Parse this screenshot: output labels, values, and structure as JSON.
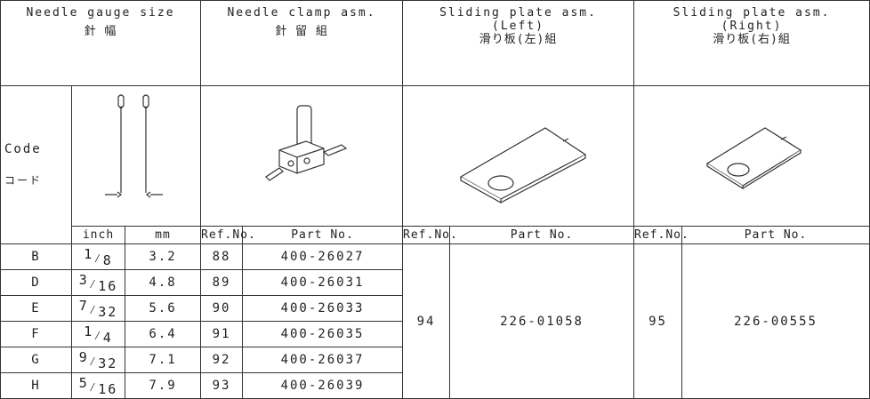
{
  "header": {
    "needle_gauge": {
      "title": "Needle gauge size",
      "subtitle": "針 幅"
    },
    "needle_clamp": {
      "title": "Needle clamp asm.",
      "subtitle": "針 留 組"
    },
    "sliding_left": {
      "title": "Sliding plate asm.",
      "side": "(Left)",
      "subtitle": "滑り板(左)組"
    },
    "sliding_right": {
      "title": "Sliding plate asm.",
      "side": "(Right)",
      "subtitle": "滑り板(右)組"
    }
  },
  "code_label": {
    "en": "Code",
    "ja": "コード"
  },
  "columns": [
    "inch",
    "mm",
    "Ref.No.",
    "Part No.",
    "Ref.No.",
    "Part No.",
    "Ref.No.",
    "Part No."
  ],
  "rows": [
    {
      "code": "B",
      "inch": {
        "num": "1",
        "den": "8"
      },
      "mm": "3.2",
      "ref": "88",
      "part": "400-26027"
    },
    {
      "code": "D",
      "inch": {
        "num": "3",
        "den": "16"
      },
      "mm": "4.8",
      "ref": "89",
      "part": "400-26031"
    },
    {
      "code": "E",
      "inch": {
        "num": "7",
        "den": "32"
      },
      "mm": "5.6",
      "ref": "90",
      "part": "400-26033"
    },
    {
      "code": "F",
      "inch": {
        "num": "1",
        "den": "4"
      },
      "mm": "6.4",
      "ref": "91",
      "part": "400-26035"
    },
    {
      "code": "G",
      "inch": {
        "num": "9",
        "den": "32"
      },
      "mm": "7.1",
      "ref": "92",
      "part": "400-26037"
    },
    {
      "code": "H",
      "inch": {
        "num": "5",
        "den": "16"
      },
      "mm": "7.9",
      "ref": "93",
      "part": "400-26039"
    }
  ],
  "sliding_left": {
    "ref": "94",
    "part": "226-01058"
  },
  "sliding_right": {
    "ref": "95",
    "part": "226-00555"
  }
}
